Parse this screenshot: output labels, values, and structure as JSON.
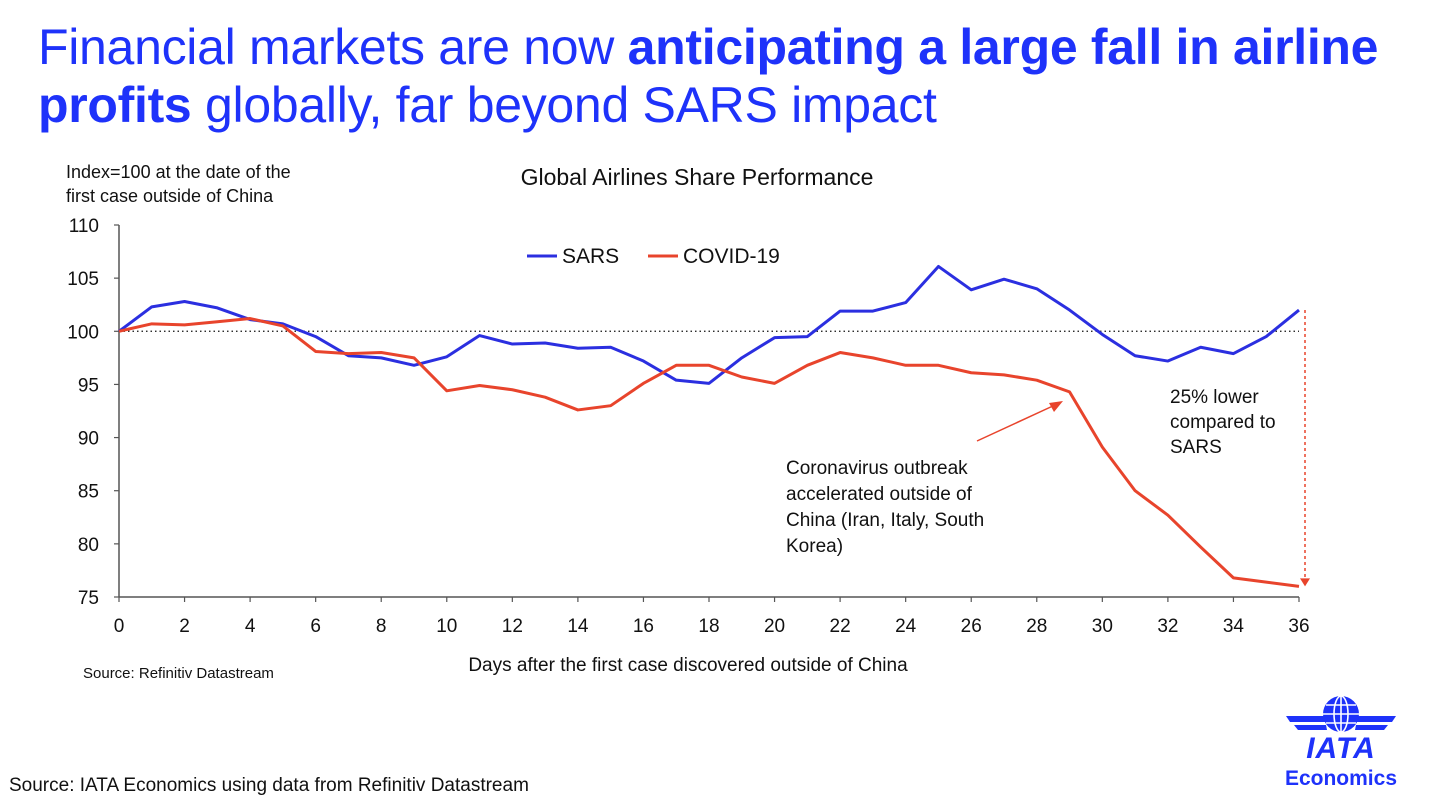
{
  "headline": {
    "part1": "Financial markets are now ",
    "bold": "anticipating a large fall in airline profits",
    "part2": " globally, far beyond SARS impact"
  },
  "chart_data": {
    "type": "line",
    "title": "Global Airlines Share Performance",
    "ylabel_line1": "Index=100 at the date of the",
    "ylabel_line2": "first case  outside of China",
    "xlabel": "Days after the first case discovered outside of China",
    "ylim": [
      75,
      110
    ],
    "yticks": [
      110,
      105,
      100,
      95,
      90,
      85,
      80,
      75
    ],
    "xlim": [
      0,
      36
    ],
    "xticks": [
      0,
      2,
      4,
      6,
      8,
      10,
      12,
      14,
      16,
      18,
      20,
      22,
      24,
      26,
      28,
      30,
      32,
      34,
      36
    ],
    "reference_line": 100,
    "legend_position": "top-center",
    "x": [
      0,
      1,
      2,
      3,
      4,
      5,
      6,
      7,
      8,
      9,
      10,
      11,
      12,
      13,
      14,
      15,
      16,
      17,
      18,
      19,
      20,
      21,
      22,
      23,
      24,
      25,
      26,
      27,
      28,
      29,
      30,
      31,
      32,
      33,
      34,
      35,
      36
    ],
    "series": [
      {
        "name": "SARS",
        "color": "#2b2fe0",
        "values": [
          100,
          102.3,
          102.8,
          102.2,
          101.1,
          100.7,
          99.5,
          97.7,
          97.5,
          96.8,
          97.6,
          99.6,
          98.8,
          98.9,
          98.4,
          98.5,
          97.2,
          95.4,
          95.1,
          97.5,
          99.4,
          99.5,
          101.9,
          101.9,
          102.7,
          106.1,
          103.9,
          104.9,
          104,
          102,
          99.7,
          97.7,
          97.2,
          98.5,
          97.9,
          99.5,
          102
        ],
        "end": 36
      },
      {
        "name": "COVID-19",
        "color": "#e8442c",
        "values": [
          100,
          100.7,
          100.6,
          100.9,
          101.2,
          100.5,
          98.1,
          97.9,
          98,
          97.5,
          94.4,
          94.9,
          94.5,
          93.8,
          92.6,
          93,
          95.1,
          96.8,
          96.8,
          95.7,
          95.1,
          96.8,
          98,
          97.5,
          96.8,
          96.8,
          96.1,
          95.9,
          95.4,
          94.3,
          89.1,
          85,
          82.7,
          79.7,
          76.8,
          76.4,
          76
        ]
      }
    ],
    "annotations": {
      "outbreak": [
        "Coronavirus outbreak",
        "accelerated outside of",
        "China (Iran, Italy, South",
        "Korea)"
      ],
      "gap": [
        "25%  lower",
        "compared to",
        "SARS"
      ]
    },
    "annotation_color": "#e8442c"
  },
  "sources": {
    "chart": "Source: Refinitiv Datastream",
    "slide": "Source: IATA Economics using data from Refinitiv Datastream"
  },
  "logo": {
    "line1": "IATA",
    "line2": "Economics",
    "icon": "globe-wings-icon",
    "color": "#1e32fa"
  }
}
